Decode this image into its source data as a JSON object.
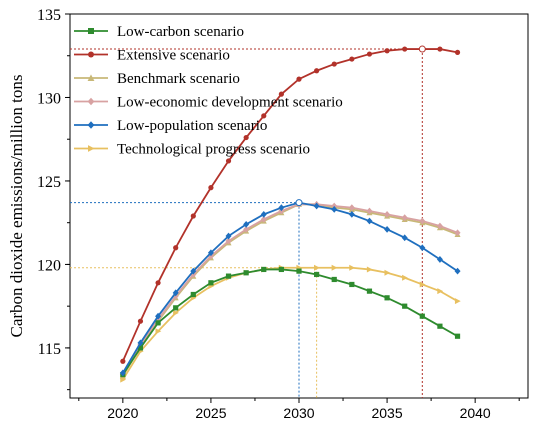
{
  "chart_data": {
    "type": "line",
    "ylabel": "Carbon dioxide emissions/million tons",
    "xlabel": "",
    "xlim": [
      2017,
      2043
    ],
    "ylim": [
      112,
      135
    ],
    "xticks": [
      2020,
      2025,
      2030,
      2035,
      2040
    ],
    "yticks": [
      115,
      120,
      125,
      130,
      135
    ],
    "x": [
      2020,
      2021,
      2022,
      2023,
      2024,
      2025,
      2026,
      2027,
      2028,
      2029,
      2030,
      2031,
      2032,
      2033,
      2034,
      2035,
      2036,
      2037,
      2038,
      2039
    ],
    "legend_position": "top-left",
    "series": [
      {
        "name": "Low-carbon scenario",
        "color": "#2e8b2e",
        "marker": "square",
        "values": [
          113.4,
          115.0,
          116.5,
          117.4,
          118.2,
          118.9,
          119.3,
          119.5,
          119.7,
          119.7,
          119.6,
          119.4,
          119.1,
          118.8,
          118.4,
          118.0,
          117.5,
          116.9,
          116.3,
          115.7
        ]
      },
      {
        "name": "Extensive scenario",
        "color": "#b2322a",
        "marker": "circle",
        "values": [
          114.2,
          116.6,
          118.9,
          121.0,
          122.9,
          124.6,
          126.2,
          127.6,
          128.9,
          130.2,
          131.1,
          131.6,
          132.0,
          132.3,
          132.6,
          132.8,
          132.9,
          132.9,
          132.9,
          132.7
        ]
      },
      {
        "name": "Benchmark scenario",
        "color": "#c8b878",
        "marker": "triangle",
        "values": [
          113.3,
          115.1,
          116.6,
          118.0,
          119.3,
          120.4,
          121.3,
          122.0,
          122.6,
          123.1,
          123.6,
          123.6,
          123.4,
          123.3,
          123.1,
          122.9,
          122.7,
          122.5,
          122.2,
          121.8
        ]
      },
      {
        "name": "Low-economic development scenario",
        "color": "#d8a2a2",
        "marker": "diamond",
        "values": [
          113.4,
          115.2,
          116.7,
          118.1,
          119.4,
          120.5,
          121.4,
          122.1,
          122.7,
          123.2,
          123.6,
          123.6,
          123.5,
          123.4,
          123.2,
          123.0,
          122.8,
          122.6,
          122.3,
          121.9
        ]
      },
      {
        "name": "Low-population scenario",
        "color": "#1f6fbf",
        "marker": "diamond",
        "values": [
          113.5,
          115.3,
          116.9,
          118.3,
          119.6,
          120.7,
          121.7,
          122.4,
          123.0,
          123.4,
          123.7,
          123.5,
          123.3,
          123.0,
          122.6,
          122.1,
          121.6,
          121.0,
          120.3,
          119.6
        ]
      },
      {
        "name": "Technological progress scenario",
        "color": "#e8c060",
        "marker": "triangle-right",
        "values": [
          113.1,
          114.8,
          116.0,
          117.1,
          118.0,
          118.7,
          119.2,
          119.5,
          119.7,
          119.8,
          119.8,
          119.8,
          119.8,
          119.8,
          119.7,
          119.5,
          119.2,
          118.8,
          118.4,
          117.8
        ]
      }
    ],
    "reference_lines": [
      {
        "color": "#b2322a",
        "x": 2037,
        "y": 132.9
      },
      {
        "color": "#1f6fbf",
        "x": 2030,
        "y": 123.7
      },
      {
        "color": "#e8c060",
        "x": 2031,
        "y": 119.8
      }
    ],
    "peak_markers": [
      {
        "color": "#b2322a",
        "x": 2037,
        "y": 132.9
      },
      {
        "color": "#1f6fbf",
        "x": 2030,
        "y": 123.7
      }
    ]
  }
}
